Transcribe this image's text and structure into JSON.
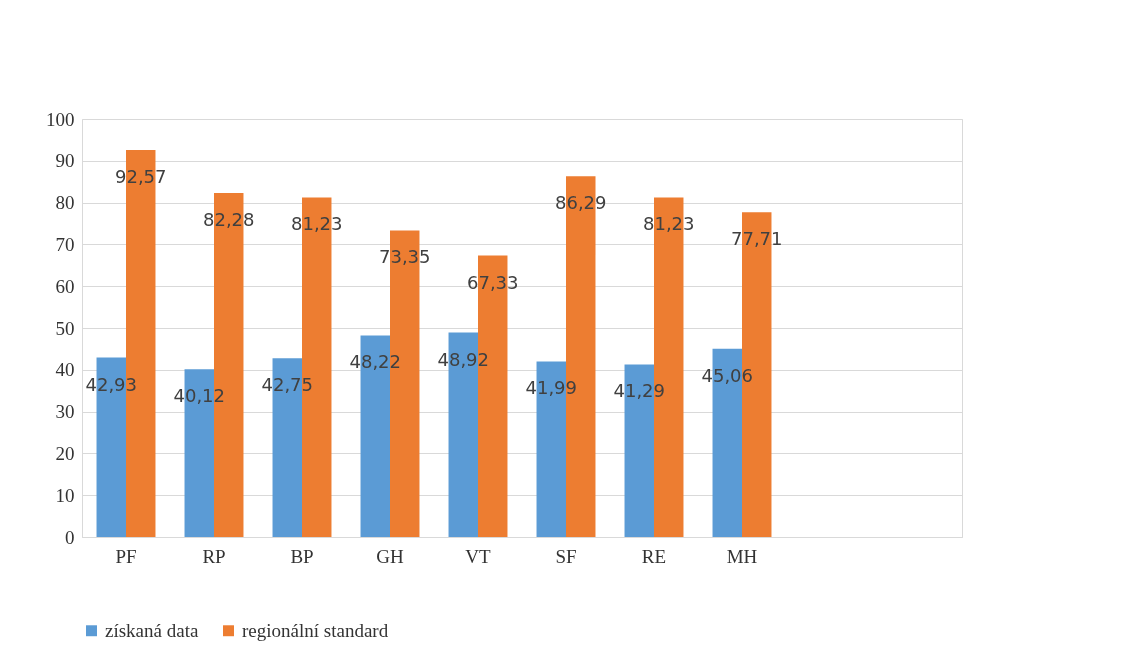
{
  "chart_data": {
    "type": "bar",
    "categories": [
      "PF",
      "RP",
      "BP",
      "GH",
      "VT",
      "SF",
      "RE",
      "MH",
      null,
      null
    ],
    "series": [
      {
        "name": "získaná data",
        "color": "#5b9bd5",
        "values": [
          42.93,
          40.12,
          42.75,
          48.22,
          48.92,
          41.99,
          41.29,
          45.06,
          null,
          null
        ],
        "value_labels": [
          "42,93",
          "40,12",
          "42,75",
          "48,22",
          "48,92",
          "41,99",
          "41,29",
          "45,06",
          null,
          null
        ]
      },
      {
        "name": "regionální standard",
        "color": "#ed7d31",
        "values": [
          92.57,
          82.28,
          81.23,
          73.35,
          67.33,
          86.29,
          81.23,
          77.71,
          null,
          null
        ],
        "value_labels": [
          "92,57",
          "82,28",
          "81,23",
          "73,35",
          "67,33",
          "86,29",
          "81,23",
          "77,71",
          null,
          null
        ]
      }
    ],
    "ylim": [
      0,
      100
    ],
    "yticks": [
      0,
      10,
      20,
      30,
      40,
      50,
      60,
      70,
      80,
      90,
      100
    ],
    "grid": "y",
    "legend": "bottom"
  }
}
